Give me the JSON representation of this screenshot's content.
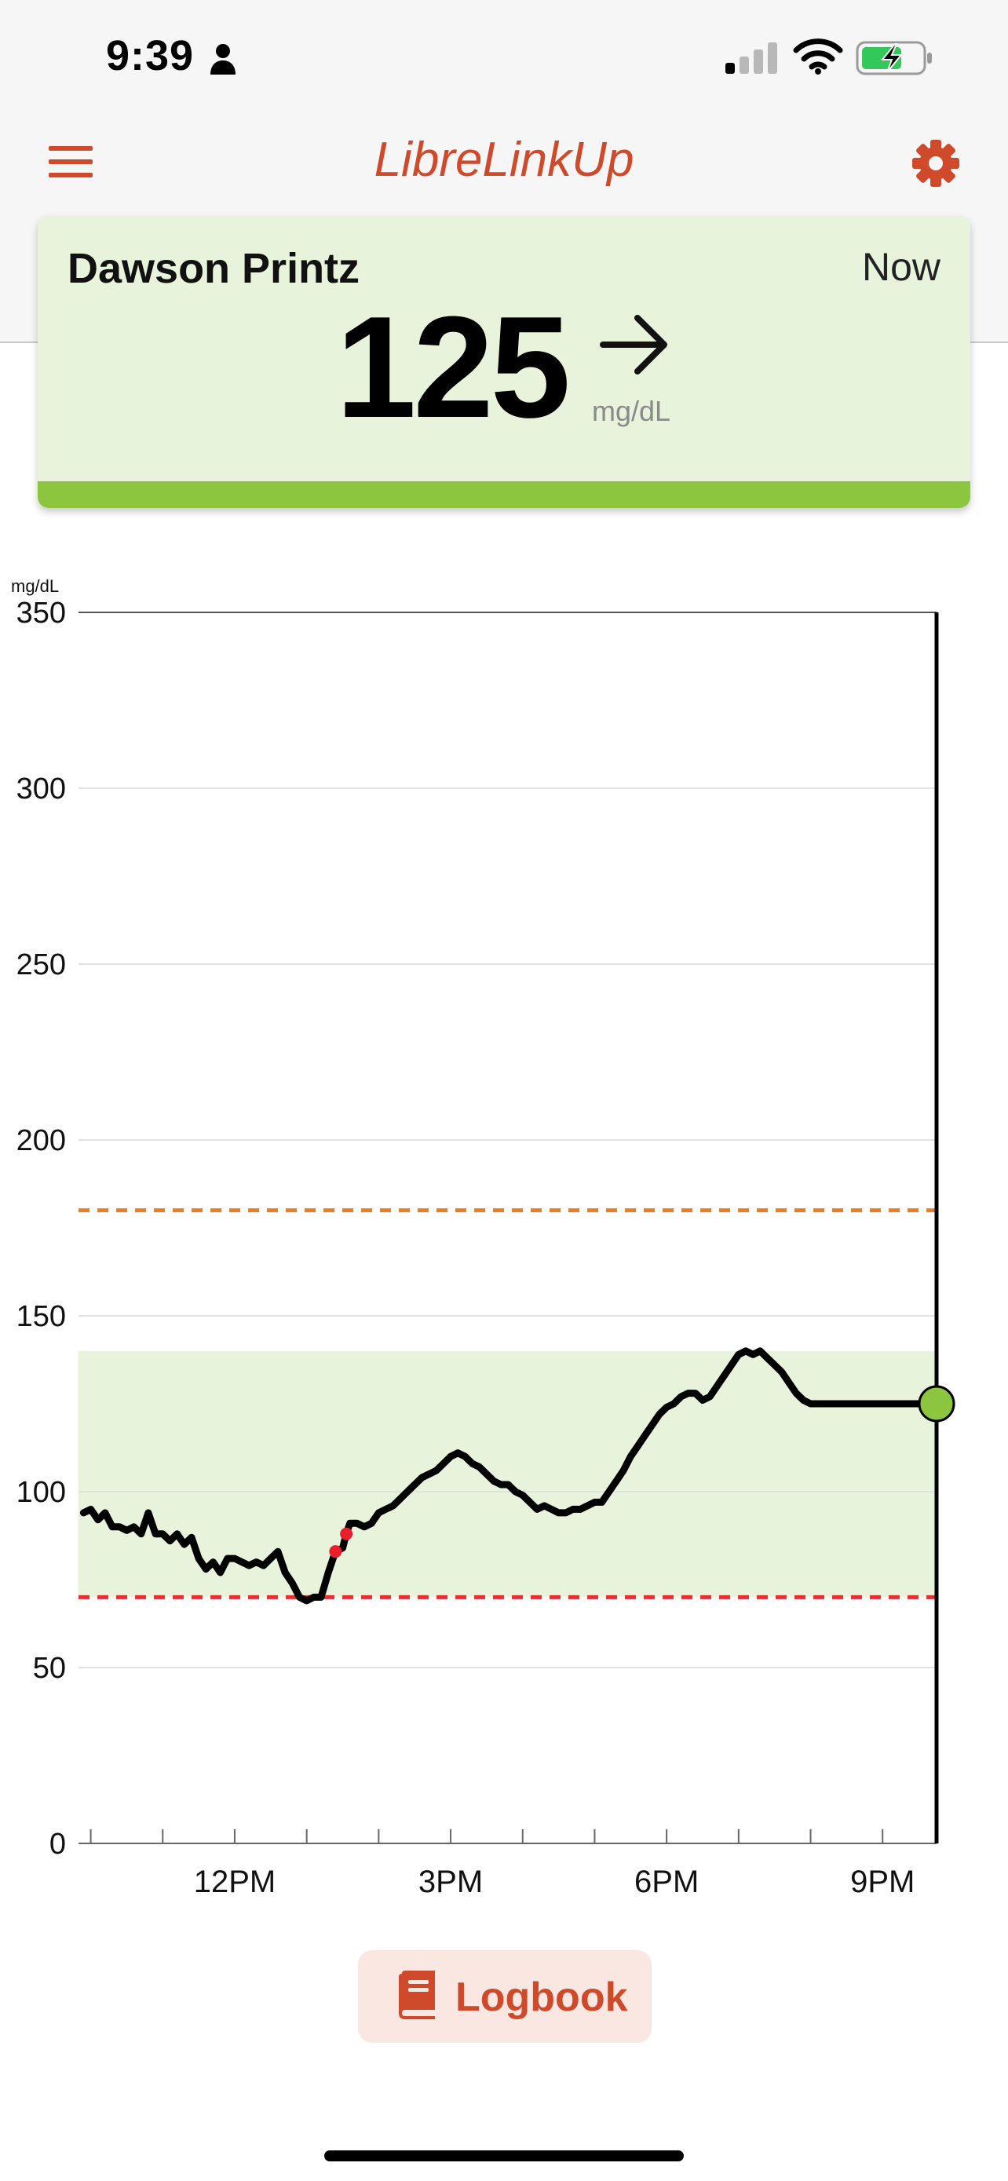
{
  "status_bar": {
    "time": "9:39",
    "icons": [
      "person-icon",
      "signal-icon",
      "wifi-icon",
      "battery-charging-icon"
    ]
  },
  "header": {
    "title": "LibreLinkUp",
    "menu_icon": "menu-icon",
    "settings_icon": "gear-icon"
  },
  "reading": {
    "patient_name": "Dawson Printz",
    "time_label": "Now",
    "value": "125",
    "unit": "mg/dL",
    "trend": "steady-arrow",
    "status_color": "#8cc63f"
  },
  "colors": {
    "accent": "#cf4a2a",
    "target_band": "#e7f3da",
    "high_line": "#ee7d22",
    "low_line": "#e03030",
    "low_points": "#e8202e",
    "current_point": "#8cc63f"
  },
  "chart_data": {
    "type": "line",
    "unit_label": "mg/dL",
    "ylim": [
      0,
      350
    ],
    "yticks": [
      "0",
      "50",
      "100",
      "150",
      "200",
      "250",
      "300",
      "350"
    ],
    "ytick_values": [
      0,
      50,
      100,
      150,
      200,
      250,
      300,
      350
    ],
    "xlim": [
      9.83,
      21.75
    ],
    "xtick_labels": [
      "12PM",
      "3PM",
      "6PM",
      "9PM"
    ],
    "xtick_values": [
      12,
      15,
      18,
      21
    ],
    "minor_xtick_values": [
      10,
      11,
      12,
      13,
      14,
      15,
      16,
      17,
      18,
      19,
      20,
      21
    ],
    "target_range": [
      70,
      140
    ],
    "high_threshold": 180,
    "low_threshold": 70,
    "grid": true,
    "current_time": 21.75,
    "current_value": 125,
    "low_point_times": [
      13.4,
      13.55
    ],
    "series": [
      {
        "x": [
          9.9,
          10.0,
          10.1,
          10.2,
          10.3,
          10.4,
          10.5,
          10.6,
          10.7,
          10.8,
          10.9,
          11.0,
          11.1,
          11.2,
          11.3,
          11.4,
          11.5,
          11.6,
          11.7,
          11.8,
          11.9,
          12.0,
          12.1,
          12.2,
          12.3,
          12.4,
          12.5,
          12.6,
          12.7,
          12.8,
          12.9,
          13.0,
          13.1,
          13.2,
          13.3,
          13.4,
          13.5,
          13.55,
          13.6,
          13.7,
          13.8,
          13.9,
          14.0,
          14.1,
          14.2,
          14.3,
          14.4,
          14.5,
          14.6,
          14.7,
          14.8,
          14.9,
          15.0,
          15.1,
          15.2,
          15.3,
          15.4,
          15.5,
          15.6,
          15.7,
          15.8,
          15.9,
          16.0,
          16.1,
          16.2,
          16.3,
          16.4,
          16.5,
          16.6,
          16.7,
          16.8,
          16.9,
          17.0,
          17.1,
          17.2,
          17.3,
          17.4,
          17.5,
          17.6,
          17.7,
          17.8,
          17.9,
          18.0,
          18.1,
          18.2,
          18.3,
          18.4,
          18.5,
          18.6,
          18.7,
          18.8,
          18.9,
          19.0,
          19.1,
          19.2,
          19.3,
          19.4,
          19.5,
          19.6,
          19.7,
          19.8,
          19.9,
          20.0,
          20.1,
          20.2,
          20.3,
          20.4,
          20.5,
          20.6,
          20.7,
          20.8,
          20.9,
          21.0,
          21.1,
          21.2,
          21.3,
          21.4,
          21.5,
          21.6,
          21.75
        ],
        "y": [
          94,
          95,
          92,
          94,
          90,
          90,
          89,
          90,
          88,
          94,
          88,
          88,
          86,
          88,
          85,
          87,
          81,
          78,
          80,
          77,
          81,
          81,
          80,
          79,
          80,
          79,
          81,
          83,
          77,
          74,
          70,
          69,
          70,
          70,
          77,
          83,
          84,
          88,
          91,
          91,
          90,
          91,
          94,
          95,
          96,
          98,
          100,
          102,
          104,
          105,
          106,
          108,
          110,
          111,
          110,
          108,
          107,
          105,
          103,
          102,
          102,
          100,
          99,
          97,
          95,
          96,
          95,
          94,
          94,
          95,
          95,
          96,
          97,
          97,
          100,
          103,
          106,
          110,
          113,
          116,
          119,
          122,
          124,
          125,
          127,
          128,
          128,
          126,
          127,
          130,
          133,
          136,
          139,
          140,
          139,
          140,
          138,
          136,
          134,
          131,
          128,
          126,
          125,
          125,
          125,
          125,
          125,
          125,
          125,
          125,
          125,
          125,
          125,
          125,
          125,
          125,
          125,
          125,
          125,
          125
        ]
      }
    ]
  },
  "logbook": {
    "label": "Logbook",
    "icon": "book-icon"
  }
}
